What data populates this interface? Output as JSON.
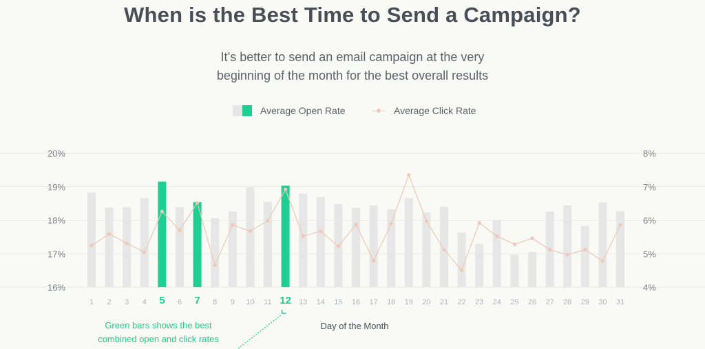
{
  "header": {
    "title": "When is the Best Time to Send a Campaign?",
    "subtitle_line1": "It’s better to send an email campaign at the very",
    "subtitle_line2": "beginning of the month for the best overall results"
  },
  "legend": {
    "open_rate_label": "Average Open Rate",
    "click_rate_label": "Average Click Rate"
  },
  "annotation": {
    "line1": "Green bars shows the best",
    "line2": "combined open and click rates"
  },
  "colors": {
    "bar": "#e6e6e6",
    "highlight": "#1ecf93",
    "click_line": "#efc7b6",
    "grid": "#e9e9e5",
    "tick_label": "#7d8188",
    "day_label": "#b0b3b8"
  },
  "chart_data": {
    "type": "bar",
    "xlabel": "Day of the Month",
    "categories": [
      "1",
      "2",
      "3",
      "4",
      "5",
      "6",
      "7",
      "8",
      "9",
      "10",
      "11",
      "12",
      "13",
      "14",
      "15",
      "16",
      "17",
      "18",
      "19",
      "20",
      "21",
      "22",
      "23",
      "24",
      "25",
      "26",
      "27",
      "28",
      "29",
      "30",
      "31"
    ],
    "highlighted_categories": [
      "5",
      "7",
      "12"
    ],
    "ylim_left": [
      16,
      20
    ],
    "ylim_right": [
      4,
      8
    ],
    "yticks_left": [
      "16%",
      "17%",
      "18%",
      "19%",
      "20%"
    ],
    "yticks_right": [
      "4%",
      "5%",
      "6%",
      "7%",
      "8%"
    ],
    "grid": true,
    "legend_position": "top-center",
    "series": [
      {
        "name": "Average Open Rate",
        "type": "bar",
        "axis": "left",
        "unit": "%",
        "values": [
          18.82,
          18.38,
          18.39,
          18.66,
          19.15,
          18.39,
          18.54,
          18.06,
          18.26,
          18.98,
          18.55,
          19.03,
          18.79,
          18.69,
          18.48,
          18.37,
          18.45,
          18.33,
          18.66,
          18.23,
          18.4,
          17.63,
          17.29,
          17.99,
          16.97,
          17.05,
          18.26,
          18.44,
          17.83,
          18.53,
          18.27
        ]
      },
      {
        "name": "Average Click Rate",
        "type": "line",
        "axis": "right",
        "unit": "%",
        "values": [
          5.24,
          5.59,
          5.31,
          5.04,
          6.26,
          5.7,
          6.52,
          4.66,
          5.86,
          5.67,
          5.99,
          6.92,
          5.52,
          5.67,
          5.22,
          5.87,
          4.79,
          5.9,
          7.35,
          5.97,
          5.12,
          4.51,
          5.92,
          5.52,
          5.28,
          5.46,
          5.12,
          4.97,
          5.12,
          4.78,
          5.86
        ]
      }
    ]
  }
}
